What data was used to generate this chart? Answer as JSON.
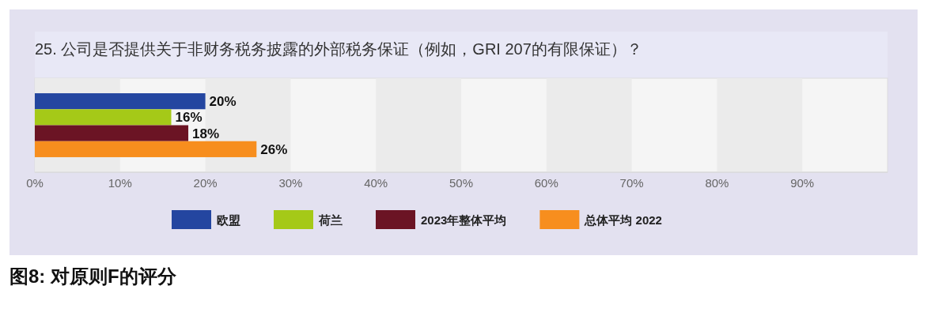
{
  "chart_data": {
    "type": "bar",
    "orientation": "horizontal",
    "title": "25. 公司是否提供关于非财务税务披露的外部税务保证（例如，GRI 207的有限保证）？",
    "annotations": [
      "图8: 对原则F的评分"
    ],
    "categories": [
      null
    ],
    "series": [
      {
        "name": "欧盟",
        "color": "#2446a0",
        "values": [
          20
        ],
        "value_labels": [
          "20%"
        ]
      },
      {
        "name": "荷兰",
        "color": "#a5c918",
        "values": [
          16
        ],
        "value_labels": [
          "16%"
        ]
      },
      {
        "name": "2023年整体平均",
        "color": "#6b1424",
        "values": [
          18
        ],
        "value_labels": [
          "18%"
        ]
      },
      {
        "name": "总体平均 2022",
        "color": "#f78e1e",
        "values": [
          26
        ],
        "value_labels": [
          "26%"
        ]
      }
    ],
    "xlim": [
      0,
      100
    ],
    "xticks": [
      {
        "value": 0,
        "label": "0%"
      },
      {
        "value": 10,
        "label": "10%"
      },
      {
        "value": 20,
        "label": "20%"
      },
      {
        "value": 30,
        "label": "30%"
      },
      {
        "value": 40,
        "label": "40%"
      },
      {
        "value": 50,
        "label": "50%"
      },
      {
        "value": 60,
        "label": "60%"
      },
      {
        "value": 70,
        "label": "70%"
      },
      {
        "value": 80,
        "label": "80%"
      },
      {
        "value": 90,
        "label": "90%"
      }
    ],
    "bands": [
      {
        "axis": "x",
        "from": 0,
        "to": 10,
        "color": "#ebebeb"
      },
      {
        "axis": "x",
        "from": 20,
        "to": 30,
        "color": "#ebebeb"
      },
      {
        "axis": "x",
        "from": 40,
        "to": 50,
        "color": "#ebebeb"
      },
      {
        "axis": "x",
        "from": 60,
        "to": 70,
        "color": "#ebebeb"
      },
      {
        "axis": "x",
        "from": 80,
        "to": 90,
        "color": "#ebebeb"
      }
    ],
    "legend": "bottom"
  }
}
